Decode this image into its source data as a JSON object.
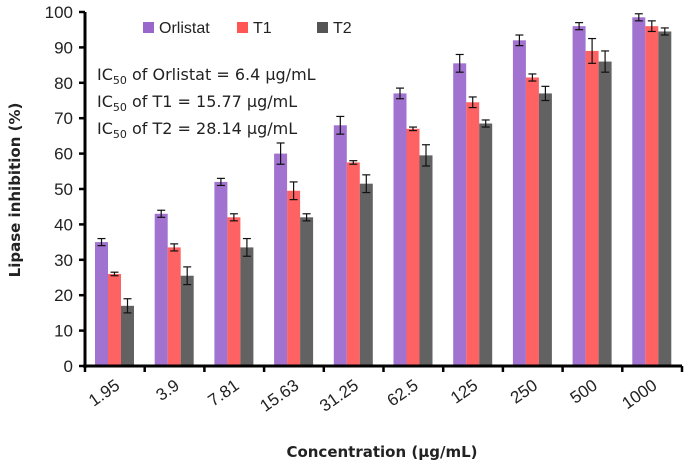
{
  "chart_data": {
    "type": "bar",
    "title": "",
    "xlabel": "Concentration (μg/mL)",
    "ylabel": "Lipase inhibition (%)",
    "ylim": [
      0,
      100
    ],
    "yticks": [
      0,
      10,
      20,
      30,
      40,
      50,
      60,
      70,
      80,
      90,
      100
    ],
    "grid": false,
    "legend_position": "top",
    "categories": [
      "1.95",
      "3.9",
      "7.81",
      "15.63",
      "31.25",
      "62.5",
      "125",
      "250",
      "500",
      "1000"
    ],
    "series": [
      {
        "name": "Orlistat",
        "color": "#9966CC",
        "values": [
          35,
          43,
          52,
          60,
          68,
          77,
          85.5,
          92,
          96,
          98.5
        ],
        "errors": [
          1,
          1,
          1,
          3,
          2.5,
          1.5,
          2.5,
          1.5,
          1,
          1
        ]
      },
      {
        "name": "T1",
        "color": "#FF5555",
        "values": [
          26,
          33.5,
          42,
          49.5,
          57.5,
          67,
          74.5,
          81.5,
          89,
          96
        ],
        "errors": [
          0.5,
          1,
          1,
          2.5,
          0.5,
          0.5,
          1.5,
          1,
          3.5,
          1.5
        ]
      },
      {
        "name": "T2",
        "color": "#555555",
        "values": [
          17,
          25.5,
          33.5,
          42,
          51.5,
          59.5,
          68.5,
          77,
          86,
          94.5
        ],
        "errors": [
          2,
          2.5,
          2.5,
          1,
          2.5,
          3,
          1,
          2,
          3,
          1
        ]
      }
    ],
    "annotations": [
      {
        "prefix": "IC",
        "sub": "50",
        "text": " of Orlistat = 6.4 μg/mL"
      },
      {
        "prefix": "IC",
        "sub": "50",
        "text": " of T1 = 15.77 μg/mL"
      },
      {
        "prefix": "IC",
        "sub": "50",
        "text": " of T2 = 28.14 μg/mL"
      }
    ]
  }
}
